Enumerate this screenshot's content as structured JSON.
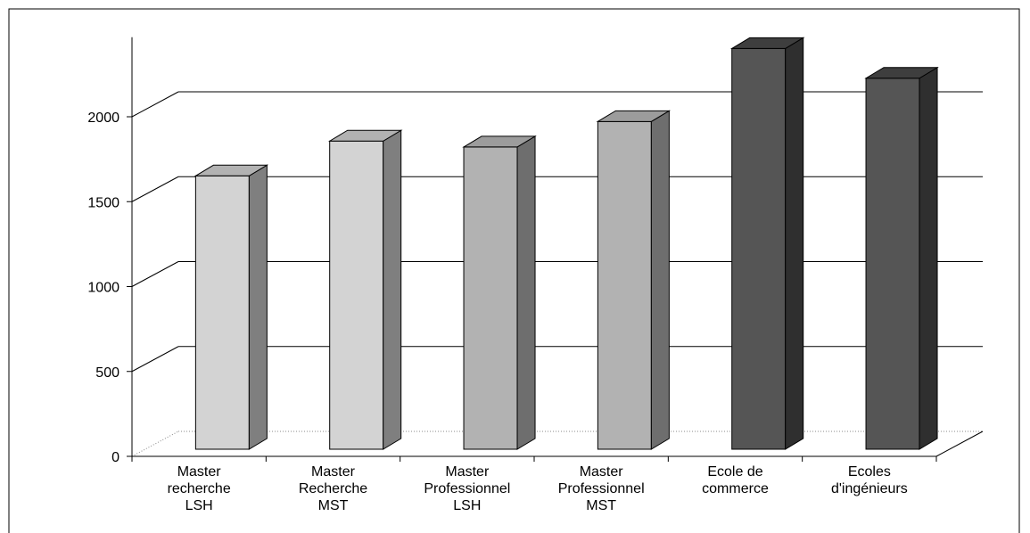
{
  "chart_data": {
    "type": "bar",
    "categories": [
      [
        "Master",
        "recherche",
        "LSH"
      ],
      [
        "Master",
        "Recherche",
        "MST"
      ],
      [
        "Master",
        "Professionnel",
        "LSH"
      ],
      [
        "Master",
        "Professionnel",
        "MST"
      ],
      [
        "Ecole de",
        "commerce"
      ],
      [
        "Ecoles",
        "d'ingénieurs"
      ]
    ],
    "values": [
      1610,
      1815,
      1780,
      1930,
      2360,
      2185
    ],
    "ylim": [
      0,
      2500
    ],
    "yticks": [
      0,
      500,
      1000,
      1500,
      2000
    ],
    "grid": true,
    "three_d": true,
    "colors": {
      "light": {
        "front": "#d3d3d3",
        "side": "#7f7f7f",
        "top": "#b2b2b2"
      },
      "medium": {
        "front": "#b2b2b2",
        "side": "#6e6e6e",
        "top": "#9c9c9c"
      },
      "dark": {
        "front": "#555555",
        "side": "#2f2f2f",
        "top": "#3e3e3e"
      }
    },
    "bar_color_keys": [
      "light",
      "light",
      "medium",
      "medium",
      "dark",
      "dark"
    ]
  }
}
